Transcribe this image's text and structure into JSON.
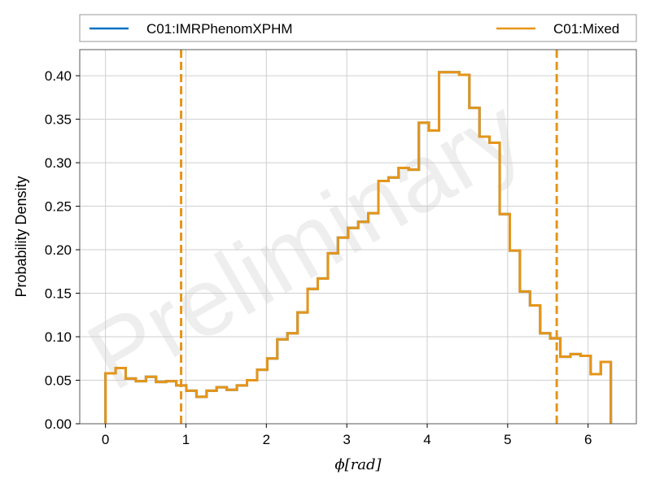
{
  "chart_data": {
    "type": "histogram",
    "xlabel": "ϕ[rad]",
    "ylabel": "Probability Density",
    "xlim": [
      -0.32,
      6.6
    ],
    "ylim": [
      0,
      0.43
    ],
    "xticks": [
      0,
      1,
      2,
      3,
      4,
      5,
      6
    ],
    "yticks": [
      0.0,
      0.05,
      0.1,
      0.15,
      0.2,
      0.25,
      0.3,
      0.35,
      0.4
    ],
    "ytick_labels": [
      "0.00",
      "0.05",
      "0.10",
      "0.15",
      "0.20",
      "0.25",
      "0.30",
      "0.35",
      "0.40"
    ],
    "grid": true,
    "legend": {
      "placement": "top",
      "entries": [
        "C01:IMRPhenomXPHM",
        "C01:Mixed"
      ]
    },
    "watermark": "Preliminary",
    "bin_edges": [
      0.0,
      0.126,
      0.251,
      0.377,
      0.503,
      0.628,
      0.754,
      0.88,
      1.005,
      1.131,
      1.257,
      1.382,
      1.508,
      1.634,
      1.759,
      1.885,
      2.011,
      2.136,
      2.262,
      2.388,
      2.513,
      2.639,
      2.765,
      2.89,
      3.016,
      3.142,
      3.267,
      3.393,
      3.519,
      3.644,
      3.77,
      3.896,
      4.021,
      4.147,
      4.273,
      4.398,
      4.524,
      4.65,
      4.775,
      4.901,
      5.027,
      5.152,
      5.278,
      5.404,
      5.529,
      5.655,
      5.781,
      5.906,
      6.032,
      6.158,
      6.283
    ],
    "series": [
      {
        "name": "C01:IMRPhenomXPHM",
        "color": "#0072c1",
        "values": [
          0.058,
          0.064,
          0.052,
          0.049,
          0.054,
          0.048,
          0.049,
          0.044,
          0.038,
          0.031,
          0.038,
          0.042,
          0.039,
          0.044,
          0.05,
          0.062,
          0.075,
          0.097,
          0.104,
          0.128,
          0.155,
          0.167,
          0.196,
          0.214,
          0.225,
          0.232,
          0.242,
          0.279,
          0.283,
          0.294,
          0.292,
          0.346,
          0.337,
          0.404,
          0.404,
          0.401,
          0.363,
          0.33,
          0.323,
          0.241,
          0.199,
          0.152,
          0.136,
          0.104,
          0.098,
          0.077,
          0.08,
          0.078,
          0.057,
          0.071
        ],
        "credible_interval": [
          0.94,
          5.61
        ]
      },
      {
        "name": "C01:Mixed",
        "color": "#e69518",
        "values": [
          0.058,
          0.064,
          0.052,
          0.049,
          0.054,
          0.048,
          0.049,
          0.044,
          0.038,
          0.031,
          0.038,
          0.042,
          0.039,
          0.044,
          0.05,
          0.062,
          0.075,
          0.097,
          0.104,
          0.128,
          0.155,
          0.167,
          0.196,
          0.214,
          0.225,
          0.232,
          0.242,
          0.279,
          0.283,
          0.294,
          0.292,
          0.346,
          0.337,
          0.404,
          0.404,
          0.401,
          0.363,
          0.33,
          0.323,
          0.241,
          0.199,
          0.152,
          0.136,
          0.104,
          0.098,
          0.077,
          0.08,
          0.078,
          0.057,
          0.071
        ],
        "credible_interval": [
          0.94,
          5.61
        ]
      }
    ]
  }
}
